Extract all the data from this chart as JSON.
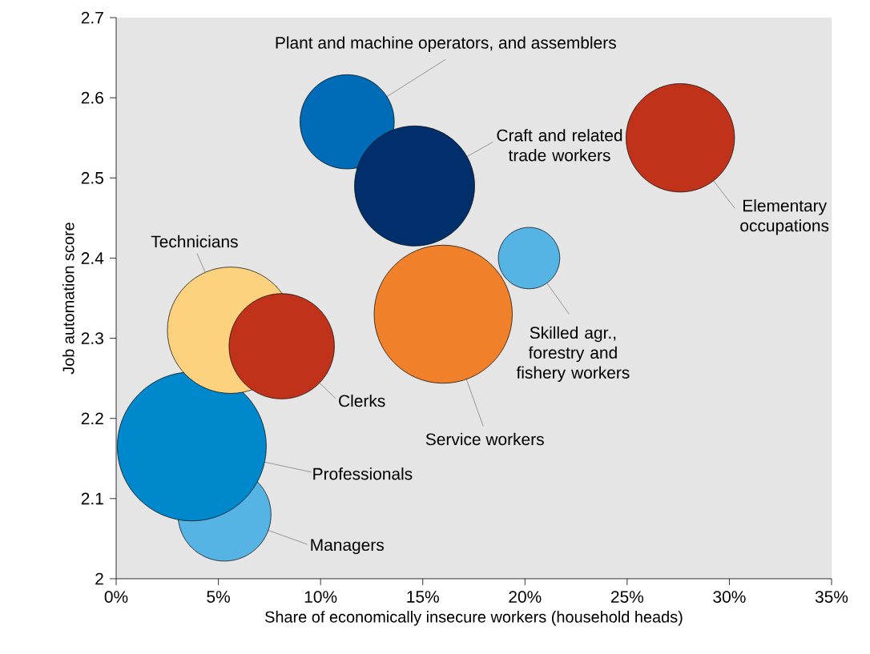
{
  "chart_data": {
    "type": "bubble",
    "xlabel": "Share of economically insecure workers (household heads)",
    "ylabel": "Job automation score",
    "xlim": [
      0,
      35
    ],
    "ylim": [
      2,
      2.7
    ],
    "xticks": [
      {
        "value": 0,
        "label": "0%"
      },
      {
        "value": 5,
        "label": "5%"
      },
      {
        "value": 10,
        "label": "10%"
      },
      {
        "value": 15,
        "label": "15%"
      },
      {
        "value": 20,
        "label": "20%"
      },
      {
        "value": 25,
        "label": "25%"
      },
      {
        "value": 30,
        "label": "30%"
      },
      {
        "value": 35,
        "label": "35%"
      }
    ],
    "yticks": [
      2,
      2.1,
      2.2,
      2.3,
      2.4,
      2.5,
      2.6,
      2.7
    ],
    "series": [
      {
        "name": "Managers",
        "color": "#56b4e5",
        "x": [
          5.3
        ],
        "values": [
          2.08
        ],
        "sizes": [
          0.39
        ]
      },
      {
        "name": "Professionals",
        "color": "#0088cc",
        "x": [
          3.7
        ],
        "values": [
          2.165
        ],
        "sizes": [
          1
        ]
      },
      {
        "name": "Technicians",
        "color": "#fdd27f",
        "x": [
          5.6
        ],
        "values": [
          2.31
        ],
        "sizes": [
          0.72
        ]
      },
      {
        "name": "Clerks",
        "color": "#c0321a",
        "x": [
          8.1
        ],
        "values": [
          2.29
        ],
        "sizes": [
          0.5
        ]
      },
      {
        "name": "Plant and machine operators, and assemblers",
        "color": "#006bb6",
        "x": [
          11.3
        ],
        "values": [
          2.57
        ],
        "sizes": [
          0.4
        ]
      },
      {
        "name": "Craft and related trade workers",
        "color": "#002f6c",
        "x": [
          14.6
        ],
        "values": [
          2.49
        ],
        "sizes": [
          0.65
        ]
      },
      {
        "name": "Elementary occupations",
        "color": "#c0321a",
        "x": [
          27.6
        ],
        "values": [
          2.55
        ],
        "sizes": [
          0.53
        ]
      },
      {
        "name": "Skilled agr., forestry and fishery workers",
        "color": "#56b4e5",
        "x": [
          20.2
        ],
        "values": [
          2.4
        ],
        "sizes": [
          0.17
        ]
      },
      {
        "name": "Service workers",
        "color": "#f0812a",
        "x": [
          16.0
        ],
        "values": [
          2.33
        ],
        "sizes": [
          0.86
        ]
      }
    ]
  }
}
